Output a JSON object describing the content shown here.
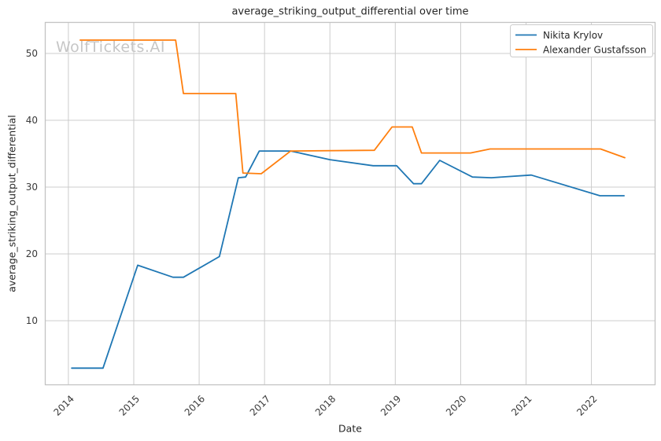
{
  "watermark": "WolfTickets.AI",
  "chart_data": {
    "type": "line",
    "title": "average_striking_output_differential over time",
    "xlabel": "Date",
    "ylabel": "average_striking_output_differential",
    "x_ticks": [
      2014,
      2015,
      2016,
      2017,
      2018,
      2019,
      2020,
      2021,
      2022
    ],
    "y_ticks": [
      10,
      20,
      30,
      40,
      50
    ],
    "xlim": [
      2013.64,
      2022.98
    ],
    "ylim": [
      0.35,
      54.7
    ],
    "grid": true,
    "legend_position": "upper right",
    "colors": {
      "grid": "#cccccc",
      "spine": "#c3c3c3",
      "text": "#262626",
      "tick_text": "#3a3a3a",
      "watermark": "#c6c6c6",
      "legend_border": "#cccccc",
      "background": "#ffffff"
    },
    "series": [
      {
        "name": "Nikita Krylov",
        "color": "#1f77b4",
        "points": [
          [
            2014.05,
            2.9
          ],
          [
            2014.53,
            2.9
          ],
          [
            2015.06,
            18.3
          ],
          [
            2015.6,
            16.5
          ],
          [
            2015.76,
            16.5
          ],
          [
            2016.31,
            19.6
          ],
          [
            2016.6,
            31.4
          ],
          [
            2016.71,
            31.5
          ],
          [
            2016.92,
            35.4
          ],
          [
            2017.4,
            35.4
          ],
          [
            2018.0,
            34.1
          ],
          [
            2018.66,
            33.2
          ],
          [
            2019.02,
            33.2
          ],
          [
            2019.28,
            30.5
          ],
          [
            2019.4,
            30.5
          ],
          [
            2019.68,
            34.0
          ],
          [
            2020.18,
            31.5
          ],
          [
            2020.47,
            31.4
          ],
          [
            2021.08,
            31.8
          ],
          [
            2022.13,
            28.7
          ],
          [
            2022.5,
            28.7
          ]
        ]
      },
      {
        "name": "Alexander Gustafsson",
        "color": "#ff7f0e",
        "points": [
          [
            2014.18,
            52.0
          ],
          [
            2015.64,
            52.0
          ],
          [
            2015.76,
            44.0
          ],
          [
            2016.56,
            44.0
          ],
          [
            2016.67,
            32.1
          ],
          [
            2016.95,
            32.0
          ],
          [
            2017.4,
            35.4
          ],
          [
            2018.68,
            35.5
          ],
          [
            2018.95,
            39.0
          ],
          [
            2019.26,
            39.0
          ],
          [
            2019.4,
            35.1
          ],
          [
            2020.15,
            35.1
          ],
          [
            2020.45,
            35.7
          ],
          [
            2022.14,
            35.7
          ],
          [
            2022.51,
            34.4
          ]
        ]
      }
    ]
  }
}
